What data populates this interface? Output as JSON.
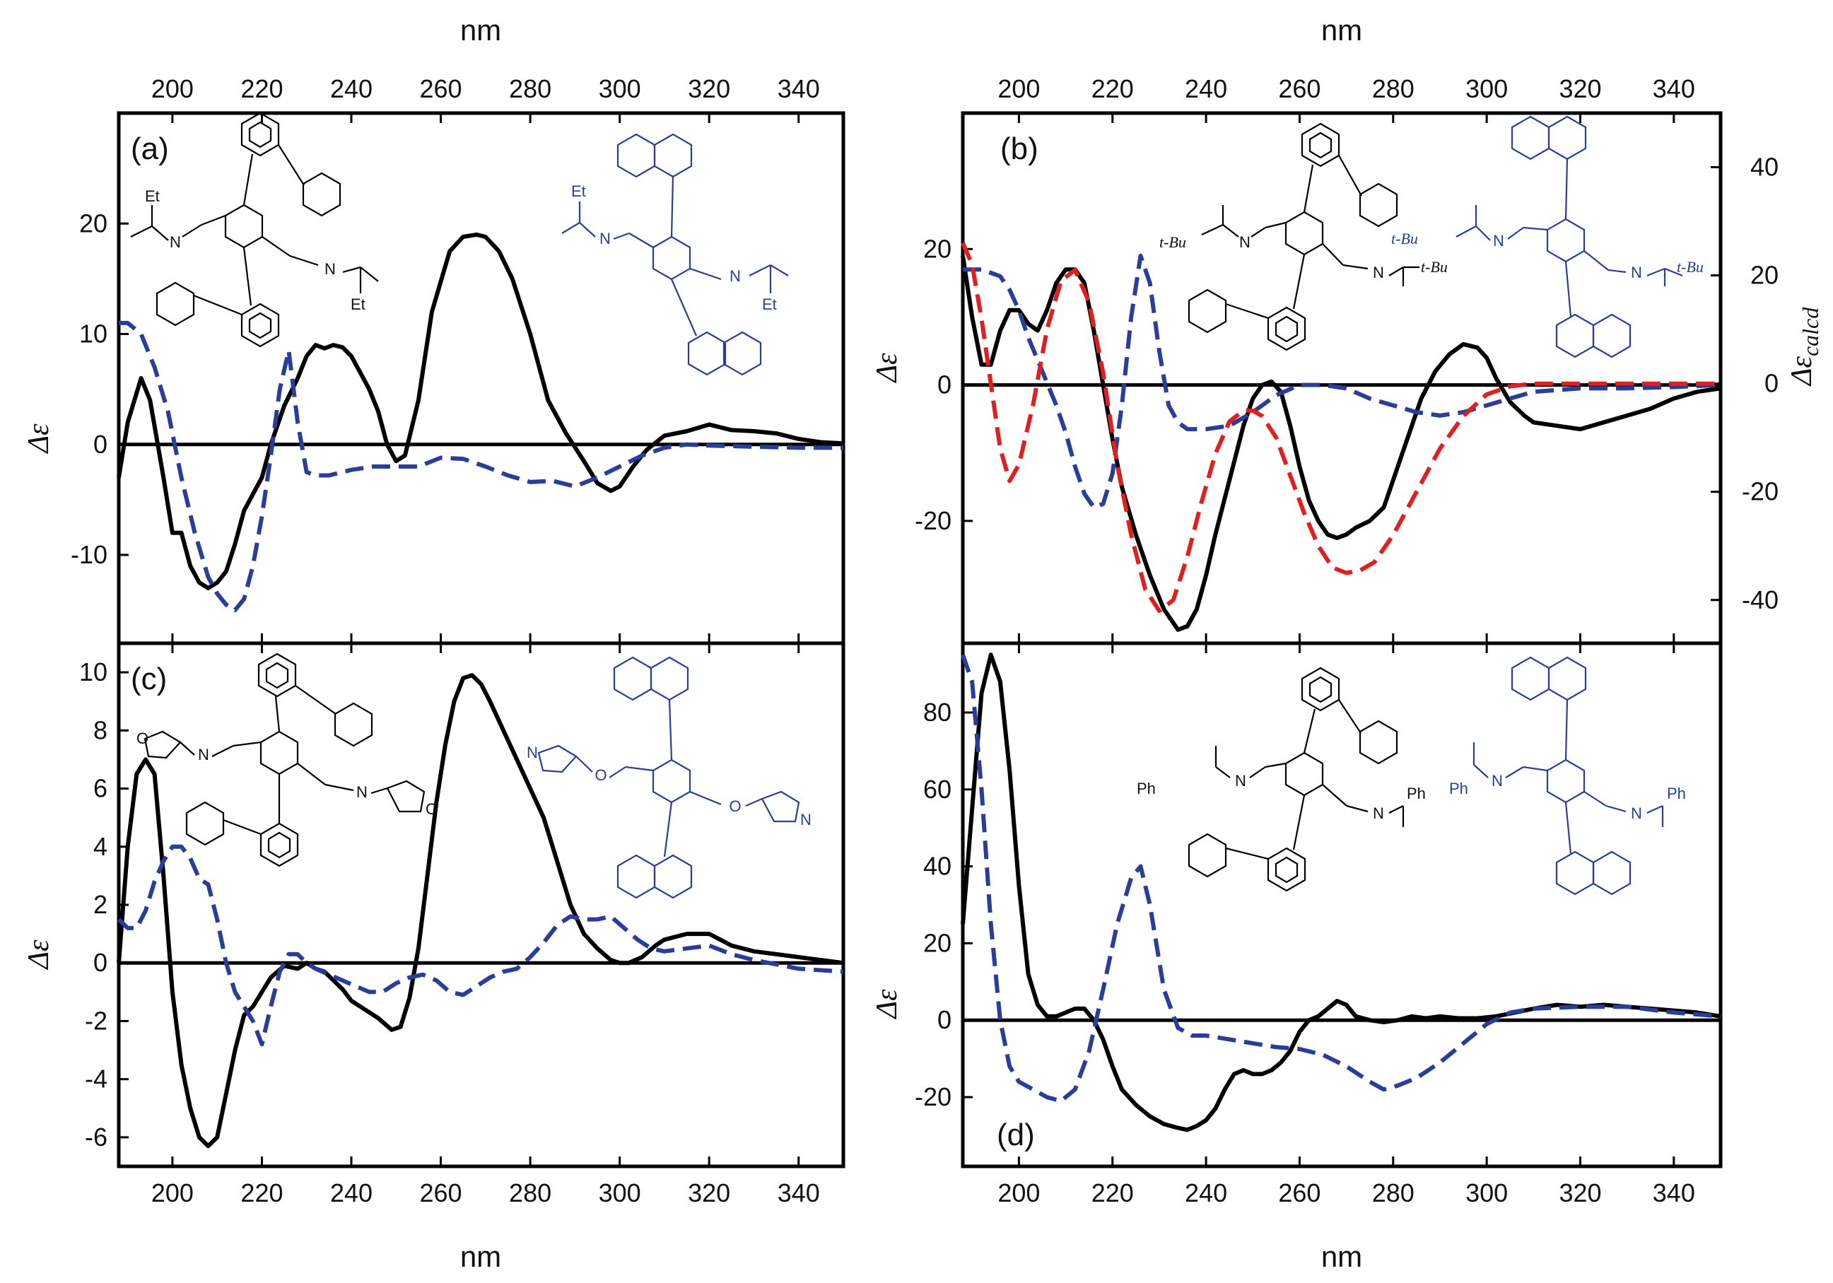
{
  "figure": {
    "x_unit_label": "nm",
    "x_ticks": [
      200,
      220,
      240,
      260,
      280,
      300,
      320,
      340
    ],
    "xlim": [
      188,
      350
    ]
  },
  "chart_data": [
    {
      "panel": "a",
      "type": "line",
      "panel_label": "(a)",
      "ylabel": "Δε",
      "ylim": [
        -18,
        30
      ],
      "yticks": [
        20,
        10,
        0,
        -10
      ],
      "ytick_labels": [
        "20",
        "10",
        "0",
        "-10"
      ],
      "molecule_labels": [
        "Et",
        "Et",
        "Et",
        "Et"
      ],
      "series": [
        {
          "name": "biphenyl (solid, black)",
          "color": "#000000",
          "style": "solid",
          "x": [
            188,
            190,
            193,
            195,
            198,
            200,
            202,
            204,
            206,
            208,
            210,
            212,
            214,
            216,
            218,
            220,
            222,
            225,
            228,
            230,
            232,
            234,
            236,
            238,
            240,
            242,
            244,
            246,
            248,
            250,
            252,
            255,
            258,
            262,
            265,
            268,
            270,
            273,
            276,
            280,
            284,
            288,
            292,
            295,
            298,
            300,
            303,
            306,
            310,
            315,
            320,
            325,
            330,
            335,
            340,
            345,
            350
          ],
          "y": [
            -3,
            2,
            6,
            4,
            -3,
            -8,
            -8,
            -11,
            -12.5,
            -13,
            -12.5,
            -11.5,
            -9,
            -6,
            -4.5,
            -3,
            0,
            3.5,
            6,
            8,
            9,
            8.7,
            9,
            8.8,
            8,
            6.5,
            5,
            3,
            0,
            -1.5,
            -1,
            4,
            12,
            17.5,
            18.8,
            19,
            18.8,
            17.5,
            15,
            10,
            4,
            1,
            -1.5,
            -3.5,
            -4.2,
            -3.8,
            -2,
            -0.5,
            0.8,
            1.2,
            1.8,
            1.3,
            1.2,
            1,
            0.5,
            0.2,
            0.1
          ]
        },
        {
          "name": "naphthyl (dashed, blue)",
          "color": "#2b3d99",
          "style": "dashed",
          "x": [
            188,
            190,
            193,
            196,
            199,
            202,
            205,
            208,
            210,
            212,
            214,
            216,
            218,
            220,
            222,
            224,
            226,
            228,
            230,
            232,
            235,
            240,
            245,
            250,
            255,
            260,
            265,
            270,
            275,
            280,
            285,
            290,
            295,
            300,
            305,
            310,
            315,
            320,
            330,
            340,
            350
          ],
          "y": [
            11,
            11,
            10,
            7,
            3,
            -3,
            -8,
            -12,
            -13.5,
            -14.5,
            -15,
            -14,
            -11,
            -6.5,
            -1,
            5,
            8.5,
            2,
            -2.5,
            -2.8,
            -2.8,
            -2.3,
            -2,
            -2,
            -2,
            -1.2,
            -1.3,
            -2,
            -2.8,
            -3.4,
            -3.3,
            -3.8,
            -3,
            -2,
            -1,
            -0.3,
            0,
            -0.1,
            -0.2,
            -0.3,
            -0.3
          ]
        }
      ]
    },
    {
      "panel": "b",
      "type": "line",
      "panel_label": "(b)",
      "ylabel": "Δε",
      "ylabel_right": "Δε",
      "ylabel_right_subscript": "calcd",
      "ylim": [
        -38,
        40
      ],
      "yticks": [
        20,
        0,
        -20
      ],
      "ytick_labels": [
        "20",
        "0",
        "-20"
      ],
      "y2lim": [
        -48,
        50
      ],
      "y2ticks": [
        40,
        20,
        0,
        -20,
        -40
      ],
      "y2tick_labels": [
        "40",
        "20",
        "0",
        "-20",
        "-40"
      ],
      "molecule_labels": [
        "t-Bu",
        "t-Bu",
        "t-Bu",
        "t-Bu"
      ],
      "series": [
        {
          "name": "experimental biphenyl (solid, black)",
          "axis": "left",
          "color": "#000000",
          "style": "solid",
          "x": [
            188,
            190,
            192,
            194,
            196,
            198,
            200,
            202,
            204,
            206,
            208,
            210,
            212,
            214,
            216,
            218,
            220,
            222,
            225,
            228,
            231,
            234,
            236,
            238,
            240,
            242,
            245,
            248,
            250,
            252,
            254,
            256,
            258,
            260,
            262,
            264,
            266,
            268,
            270,
            272,
            275,
            278,
            280,
            283,
            286,
            289,
            292,
            295,
            298,
            300,
            302,
            305,
            308,
            310,
            315,
            320,
            325,
            330,
            335,
            340,
            345,
            350
          ],
          "y": [
            19,
            10,
            3,
            3,
            8,
            11,
            11,
            9,
            8,
            11,
            15,
            17,
            17,
            15,
            8,
            0,
            -8,
            -15,
            -22,
            -28,
            -33,
            -36,
            -35.5,
            -33,
            -28,
            -22,
            -14,
            -6,
            -2,
            0,
            0.5,
            -1,
            -6,
            -12,
            -17,
            -20,
            -22,
            -22.5,
            -22,
            -21,
            -20,
            -18,
            -14,
            -8,
            -2,
            2,
            4.5,
            6,
            5.5,
            4,
            1,
            -2.5,
            -4.5,
            -5.5,
            -6,
            -6.5,
            -5.5,
            -4.5,
            -3.5,
            -2,
            -1,
            -0.5
          ]
        },
        {
          "name": "experimental naphthyl (dashed, blue)",
          "axis": "left",
          "color": "#2b3d99",
          "style": "dashed",
          "x": [
            188,
            190,
            192,
            194,
            196,
            198,
            200,
            202,
            205,
            208,
            210,
            212,
            214,
            216,
            218,
            220,
            222,
            224,
            226,
            228,
            230,
            232,
            234,
            236,
            240,
            245,
            250,
            255,
            260,
            265,
            270,
            275,
            280,
            285,
            290,
            295,
            300,
            305,
            310,
            320,
            330,
            340,
            350
          ],
          "y": [
            17,
            17,
            17,
            16.5,
            16,
            14,
            11,
            7,
            2,
            -3,
            -7,
            -12,
            -16,
            -18,
            -17.5,
            -13,
            -3,
            10,
            19,
            15,
            5,
            -3,
            -5.5,
            -6.5,
            -6.5,
            -6,
            -4,
            -1.5,
            0,
            0,
            -0.5,
            -2,
            -3,
            -4,
            -4.5,
            -4,
            -3,
            -2,
            -1,
            -0.5,
            -0.5,
            -0.3,
            0
          ]
        },
        {
          "name": "calculated (dashed, red)",
          "axis": "right",
          "color": "#e02020",
          "style": "dashed",
          "x": [
            188,
            190,
            192,
            194,
            196,
            198,
            200,
            203,
            206,
            209,
            212,
            215,
            218,
            221,
            224,
            227,
            230,
            233,
            236,
            239,
            242,
            245,
            248,
            250,
            252,
            255,
            258,
            261,
            264,
            267,
            270,
            273,
            276,
            280,
            285,
            290,
            295,
            300,
            305,
            310,
            320,
            330,
            340,
            350
          ],
          "y": [
            26,
            22,
            12,
            0,
            -12,
            -18,
            -15,
            -4,
            10,
            19,
            21,
            15,
            2,
            -15,
            -28,
            -38,
            -42,
            -40,
            -32,
            -22,
            -13,
            -7,
            -5,
            -5,
            -6,
            -10,
            -17,
            -24,
            -30,
            -34,
            -35,
            -34.5,
            -33,
            -28,
            -20,
            -12,
            -6,
            -2,
            -0.5,
            0,
            0,
            0,
            0,
            0
          ]
        }
      ]
    },
    {
      "panel": "c",
      "type": "line",
      "panel_label": "(c)",
      "ylabel": "Δε",
      "ylim": [
        -7,
        11
      ],
      "yticks": [
        10,
        8,
        6,
        4,
        2,
        0,
        -2,
        -4,
        -6
      ],
      "ytick_labels": [
        "10",
        "8",
        "6",
        "4",
        "2",
        "0",
        "-2",
        "-4",
        "-6"
      ],
      "molecule_labels": [
        "O",
        "N",
        "O",
        "N",
        "N",
        "O",
        "N",
        "O"
      ],
      "series": [
        {
          "name": "biphenyl (solid, black)",
          "color": "#000000",
          "style": "solid",
          "x": [
            188,
            190,
            192,
            194,
            196,
            198,
            200,
            202,
            204,
            206,
            208,
            210,
            212,
            214,
            216,
            218,
            220,
            222,
            225,
            228,
            230,
            232,
            234,
            236,
            238,
            240,
            243,
            246,
            249,
            251,
            253,
            255,
            257,
            259,
            261,
            263,
            265,
            267,
            269,
            271,
            274,
            277,
            280,
            283,
            286,
            289,
            292,
            295,
            298,
            300,
            302,
            305,
            308,
            310,
            315,
            320,
            325,
            330,
            335,
            340,
            345,
            350
          ],
          "y": [
            0,
            4,
            6.5,
            7,
            6.5,
            3,
            -1,
            -3.5,
            -5,
            -6,
            -6.3,
            -6,
            -4.5,
            -3,
            -1.8,
            -1.5,
            -1,
            -0.5,
            -0.1,
            -0.2,
            0,
            -0.2,
            -0.3,
            -0.6,
            -0.9,
            -1.3,
            -1.6,
            -1.9,
            -2.3,
            -2.2,
            -1.2,
            0.5,
            3,
            5.5,
            7.5,
            9,
            9.8,
            9.9,
            9.6,
            9,
            8,
            7,
            6,
            5,
            3.5,
            2,
            1,
            0.5,
            0.1,
            0,
            0,
            0.2,
            0.6,
            0.8,
            1,
            1,
            0.6,
            0.4,
            0.3,
            0.2,
            0.1,
            0
          ]
        },
        {
          "name": "naphthyl (dashed, blue)",
          "color": "#2b3d99",
          "style": "dashed",
          "x": [
            188,
            190,
            192,
            194,
            196,
            198,
            200,
            202,
            204,
            206,
            208,
            210,
            212,
            214,
            216,
            218,
            220,
            222,
            224,
            226,
            228,
            230,
            232,
            235,
            238,
            241,
            244,
            247,
            250,
            253,
            256,
            259,
            262,
            265,
            268,
            271,
            274,
            277,
            280,
            283,
            286,
            289,
            292,
            295,
            298,
            301,
            304,
            307,
            310,
            315,
            320,
            325,
            330,
            340,
            350
          ],
          "y": [
            1.5,
            1.2,
            1.2,
            1.8,
            2.8,
            3.5,
            4,
            4,
            3.6,
            2.9,
            2.7,
            1.5,
            0,
            -1,
            -1.5,
            -2,
            -2.8,
            -1.5,
            -0.3,
            0.3,
            0.3,
            0,
            -0.2,
            -0.4,
            -0.6,
            -0.8,
            -1,
            -1,
            -0.7,
            -0.5,
            -0.4,
            -0.6,
            -1,
            -1.1,
            -0.8,
            -0.5,
            -0.3,
            -0.2,
            0.2,
            0.7,
            1.3,
            1.6,
            1.5,
            1.5,
            1.6,
            1.2,
            0.8,
            0.5,
            0.4,
            0.5,
            0.6,
            0.3,
            0.1,
            -0.2,
            -0.3
          ]
        }
      ]
    },
    {
      "panel": "d",
      "type": "line",
      "panel_label": "(d)",
      "ylabel": "Δε",
      "ylim": [
        -38,
        98
      ],
      "yticks": [
        80,
        60,
        40,
        20,
        0,
        -20
      ],
      "ytick_labels": [
        "80",
        "60",
        "40",
        "20",
        "0",
        "-20"
      ],
      "molecule_labels": [
        "Ph",
        "N",
        "N",
        "Ph",
        "Ph",
        "N",
        "N",
        "Ph"
      ],
      "series": [
        {
          "name": "biphenyl (solid, black)",
          "color": "#000000",
          "style": "solid",
          "x": [
            188,
            190,
            192,
            194,
            196,
            198,
            200,
            202,
            204,
            206,
            208,
            210,
            212,
            214,
            216,
            218,
            220,
            222,
            225,
            228,
            231,
            234,
            236,
            238,
            240,
            242,
            244,
            246,
            248,
            250,
            252,
            254,
            256,
            258,
            260,
            262,
            264,
            266,
            268,
            270,
            272,
            275,
            278,
            281,
            284,
            287,
            290,
            294,
            298,
            302,
            306,
            310,
            315,
            320,
            325,
            330,
            335,
            340,
            345,
            350
          ],
          "y": [
            25,
            55,
            85,
            95,
            88,
            65,
            35,
            12,
            4,
            1,
            1,
            2,
            3,
            3,
            0,
            -5,
            -12,
            -18,
            -22,
            -25,
            -27,
            -28,
            -28.5,
            -27.5,
            -26,
            -23,
            -18,
            -14,
            -13,
            -14,
            -14,
            -13,
            -11,
            -8,
            -3,
            0,
            1,
            3,
            5,
            4,
            1,
            0,
            -0.5,
            0,
            1,
            0.5,
            1,
            0.5,
            0.5,
            1,
            2,
            3,
            4,
            3.5,
            4,
            3.5,
            3,
            2.5,
            2,
            1
          ]
        },
        {
          "name": "naphthyl (dashed, blue)",
          "color": "#2b3d99",
          "style": "dashed",
          "x": [
            188,
            190,
            192,
            194,
            196,
            198,
            200,
            203,
            206,
            209,
            212,
            215,
            218,
            221,
            224,
            226,
            228,
            231,
            234,
            237,
            240,
            245,
            250,
            255,
            260,
            265,
            270,
            275,
            278,
            281,
            285,
            290,
            295,
            300,
            305,
            310,
            320,
            330,
            340,
            350
          ],
          "y": [
            95,
            88,
            60,
            25,
            0,
            -12,
            -16,
            -18,
            -20,
            -21,
            -18,
            -8,
            8,
            25,
            37,
            40,
            30,
            8,
            -2,
            -4,
            -4,
            -5,
            -6,
            -7,
            -7.5,
            -9,
            -12,
            -16,
            -18,
            -17,
            -15,
            -11,
            -6,
            -1,
            2,
            3,
            3.5,
            3.5,
            2,
            1
          ]
        }
      ]
    }
  ]
}
